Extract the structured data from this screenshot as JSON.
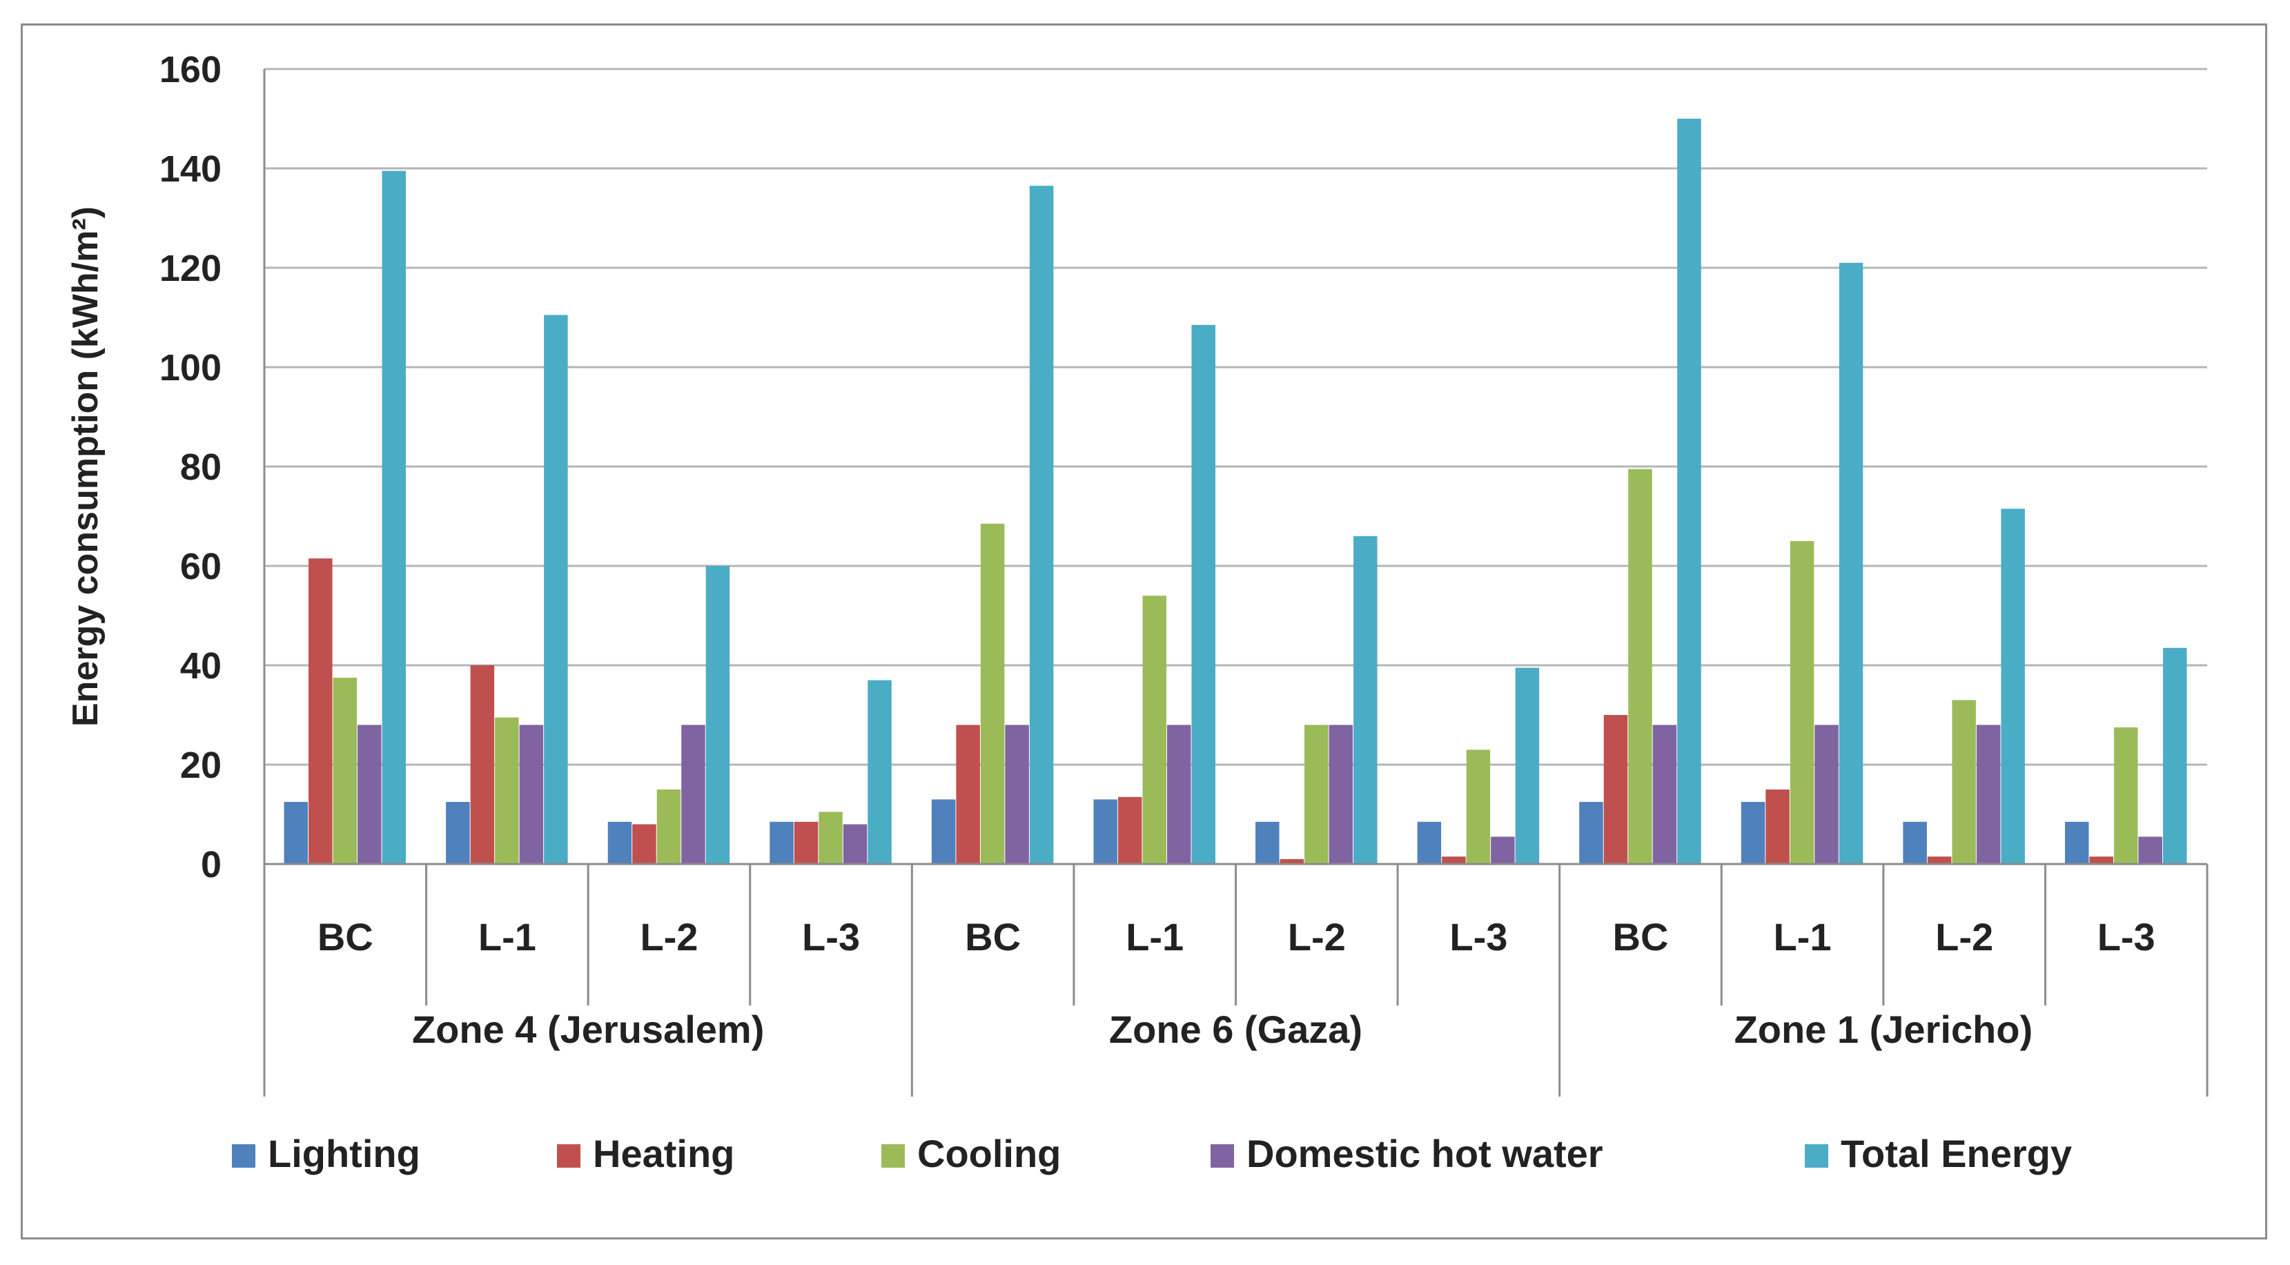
{
  "chart_data": {
    "type": "bar",
    "title": "",
    "xlabel": "",
    "ylabel": "Energy consumption (kWh/m²)",
    "ylim": [
      0,
      160
    ],
    "yticks": [
      0,
      20,
      40,
      60,
      80,
      100,
      120,
      140,
      160
    ],
    "grid": true,
    "legend_position": "bottom",
    "categories": [
      "BC",
      "L-1",
      "L-2",
      "L-3",
      "BC",
      "L-1",
      "L-2",
      "L-3",
      "BC",
      "L-1",
      "L-2",
      "L-3"
    ],
    "groups": [
      {
        "label": "Zone 4 (Jerusalem)",
        "span": 4
      },
      {
        "label": "Zone 6 (Gaza)",
        "span": 4
      },
      {
        "label": "Zone 1 (Jericho)",
        "span": 4
      }
    ],
    "series": [
      {
        "name": "Lighting",
        "color": "#4f81bd",
        "values": [
          12.5,
          12.5,
          8.5,
          8.5,
          13,
          13,
          8.5,
          8.5,
          12.5,
          12.5,
          8.5,
          8.5
        ]
      },
      {
        "name": "Heating",
        "color": "#c0504d",
        "values": [
          61.5,
          40,
          8,
          8.5,
          28,
          13.5,
          1,
          1.5,
          30,
          15,
          1.5,
          1.5
        ]
      },
      {
        "name": "Cooling",
        "color": "#9bbb59",
        "values": [
          37.5,
          29.5,
          15,
          10.5,
          68.5,
          54,
          28,
          23,
          79.5,
          65,
          33,
          27.5
        ]
      },
      {
        "name": "Domestic hot water",
        "color": "#8064a2",
        "values": [
          28,
          28,
          28,
          8,
          28,
          28,
          28,
          5.5,
          28,
          28,
          28,
          5.5
        ]
      },
      {
        "name": "Total Energy",
        "color": "#4bacc6",
        "values": [
          139.5,
          110.5,
          60,
          37,
          136.5,
          108.5,
          66,
          39.5,
          150,
          121,
          71.5,
          43.5
        ]
      }
    ]
  }
}
